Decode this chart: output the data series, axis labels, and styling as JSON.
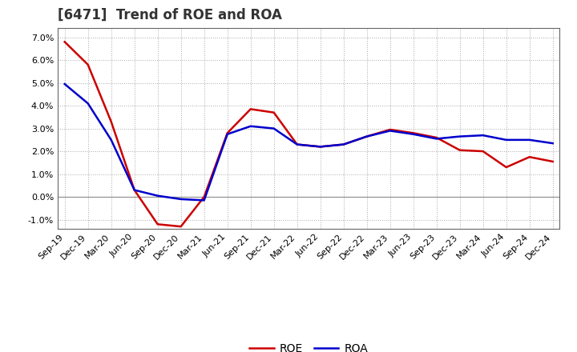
{
  "title": "[6471]  Trend of ROE and ROA",
  "x_labels": [
    "Sep-19",
    "Dec-19",
    "Mar-20",
    "Jun-20",
    "Sep-20",
    "Dec-20",
    "Mar-21",
    "Jun-21",
    "Sep-21",
    "Dec-21",
    "Mar-22",
    "Jun-22",
    "Sep-22",
    "Dec-22",
    "Mar-23",
    "Jun-23",
    "Sep-23",
    "Dec-23",
    "Mar-24",
    "Jun-24",
    "Sep-24",
    "Dec-24"
  ],
  "roe": [
    6.8,
    5.8,
    3.3,
    0.3,
    -1.2,
    -1.3,
    0.0,
    2.8,
    3.85,
    3.7,
    2.3,
    2.2,
    2.3,
    2.65,
    2.95,
    2.8,
    2.6,
    2.05,
    2.0,
    1.3,
    1.75,
    1.55
  ],
  "roa": [
    4.95,
    4.1,
    2.5,
    0.3,
    0.05,
    -0.1,
    -0.15,
    2.75,
    3.1,
    3.0,
    2.3,
    2.2,
    2.3,
    2.65,
    2.9,
    2.75,
    2.55,
    2.65,
    2.7,
    2.5,
    2.5,
    2.35
  ],
  "roe_color": "#cc0000",
  "roa_color": "#0000cc",
  "line_width": 1.8,
  "ylim": [
    -1.4,
    7.4
  ],
  "yticks": [
    -1.0,
    0.0,
    1.0,
    2.0,
    3.0,
    4.0,
    5.0,
    6.0,
    7.0
  ],
  "background_color": "#ffffff",
  "plot_bg_color": "#ffffff",
  "grid_color": "#aaaaaa",
  "title_fontsize": 12,
  "tick_fontsize": 8,
  "legend_fontsize": 10
}
